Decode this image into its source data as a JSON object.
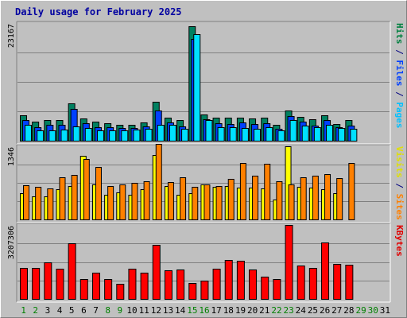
{
  "chart_data": {
    "type": "bar",
    "title": "Daily usage for February 2025",
    "categories": [
      "1",
      "2",
      "3",
      "4",
      "5",
      "6",
      "7",
      "8",
      "9",
      "10",
      "11",
      "12",
      "13",
      "14",
      "15",
      "16",
      "17",
      "18",
      "19",
      "20",
      "21",
      "22",
      "23",
      "24",
      "25",
      "26",
      "27",
      "28",
      "29",
      "30",
      "31"
    ],
    "weekend_days": [
      "1",
      "2",
      "8",
      "9",
      "15",
      "16",
      "22",
      "23",
      "29",
      "30"
    ],
    "panels": [
      {
        "id": "hits-files-pages",
        "max_label": "23167",
        "ymax": 23167,
        "axis_labels": [
          {
            "text": "Hits",
            "color": "#008040"
          },
          {
            "text": " / ",
            "color": "#000080"
          },
          {
            "text": "Files",
            "color": "#0040ff"
          },
          {
            "text": " / ",
            "color": "#000080"
          },
          {
            "text": "Pages",
            "color": "#00c0ff"
          }
        ],
        "series": [
          {
            "name": "Hits",
            "color": "#008060",
            "values": [
              5000,
              3800,
              4100,
              4100,
              7400,
              4400,
              3700,
              3400,
              3200,
              3200,
              3600,
              7600,
              4600,
              4100,
              22500,
              5200,
              4600,
              4500,
              4600,
              4400,
              4500,
              3100,
              6000,
              4700,
              4200,
              5000,
              3300,
              4000,
              null,
              null,
              null
            ]
          },
          {
            "name": "Files",
            "color": "#0040ff",
            "values": [
              4100,
              2700,
              3100,
              3100,
              6300,
              3400,
              2600,
              2600,
              2500,
              2500,
              2800,
              6000,
              3600,
              2800,
              20000,
              4200,
              3500,
              3300,
              3600,
              3300,
              3400,
              2300,
              4800,
              3700,
              3000,
              4000,
              2600,
              2900,
              null,
              null,
              null
            ]
          },
          {
            "name": "Pages",
            "color": "#00e0ff",
            "values": [
              3100,
              2100,
              2100,
              2200,
              2800,
              2500,
              2100,
              2000,
              2100,
              2200,
              2300,
              3100,
              3100,
              2300,
              21000,
              4100,
              2700,
              2600,
              2500,
              2400,
              2700,
              2100,
              4100,
              2900,
              2600,
              3100,
              2500,
              2400,
              null,
              null,
              null
            ]
          }
        ]
      },
      {
        "id": "visits-sites",
        "max_label": "1346",
        "ymax": 1346,
        "axis_labels": [
          {
            "text": "Visits",
            "color": "#e0e000"
          },
          {
            "text": " / ",
            "color": "#000080"
          },
          {
            "text": "Sites",
            "color": "#ff8000"
          }
        ],
        "series": [
          {
            "name": "Visits",
            "color": "#ffff00",
            "values": [
              480,
              420,
              420,
              550,
              620,
              1170,
              640,
              450,
              500,
              460,
              560,
              1180,
              620,
              450,
              490,
              650,
              600,
              620,
              590,
              580,
              570,
              360,
              1346,
              600,
              590,
              560,
              480,
              null,
              null,
              null,
              null
            ]
          },
          {
            "name": "Sites",
            "color": "#ff8000",
            "values": [
              630,
              600,
              570,
              780,
              820,
              1110,
              960,
              620,
              640,
              680,
              700,
              1390,
              690,
              780,
              600,
              640,
              620,
              740,
              1040,
              800,
              1020,
              700,
              650,
              780,
              800,
              830,
              760,
              1040,
              null,
              null,
              null
            ]
          }
        ]
      },
      {
        "id": "kbytes",
        "max_label": "3207306",
        "ymax": 3207306,
        "axis_labels": [
          {
            "text": "KBytes",
            "color": "#e00000"
          }
        ],
        "series": [
          {
            "name": "KBytes",
            "color": "#ff0000",
            "values": [
              1340000,
              1360000,
              1580000,
              1310000,
              2420000,
              870000,
              1130000,
              860000,
              650000,
              1300000,
              1130000,
              2340000,
              1230000,
              1270000,
              700000,
              790000,
              1310000,
              1680000,
              1660000,
              1260000,
              960000,
              870000,
              3207306,
              1460000,
              1360000,
              2440000,
              1530000,
              1470000,
              null,
              null,
              null
            ]
          }
        ]
      }
    ]
  }
}
